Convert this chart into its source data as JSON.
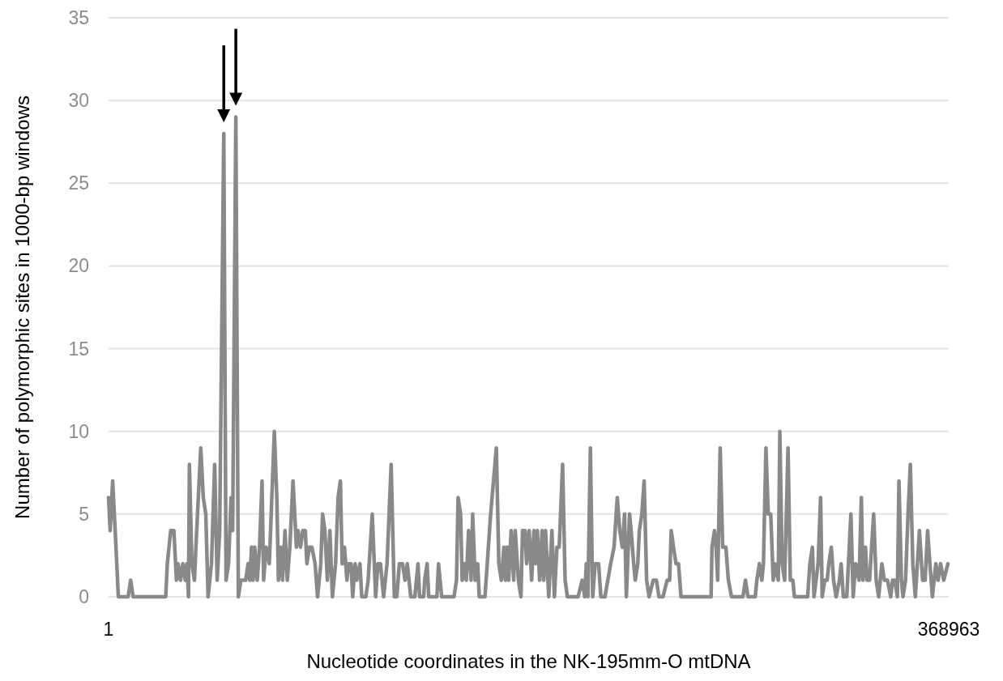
{
  "chart_data": {
    "type": "line",
    "xlabel": "Nucleotide coordinates in the NK-195mm-O mtDNA",
    "ylabel": "Number of polymorphic sites in 1000-bp windows",
    "xlim": [
      1,
      368963
    ],
    "xticks": [
      1,
      368963
    ],
    "ylim": [
      0,
      35
    ],
    "yticks": [
      0,
      5,
      10,
      15,
      20,
      25,
      30,
      35
    ],
    "grid": "y",
    "marker": "none",
    "line_style": "solid",
    "series": [
      {
        "color": "#898989",
        "x": [
          1,
          700,
          1800,
          2900,
          4300,
          8600,
          9700,
          10800,
          25100,
          25800,
          27300,
          28700,
          29800,
          30500,
          31600,
          32600,
          33700,
          34400,
          35100,
          35500,
          36600,
          37700,
          38700,
          40500,
          41600,
          42700,
          43700,
          45200,
          46600,
          47700,
          48800,
          50600,
          51600,
          52700,
          53800,
          54500,
          55900,
          57000,
          58100,
          60200,
          61300,
          62000,
          62800,
          63500,
          64200,
          65300,
          66300,
          67400,
          68100,
          69200,
          70600,
          72800,
          73900,
          74600,
          75700,
          76400,
          77500,
          78500,
          79600,
          81000,
          82500,
          83200,
          84300,
          85300,
          86400,
          87100,
          88200,
          89300,
          90700,
          91800,
          93200,
          94000,
          95000,
          96100,
          97200,
          98300,
          99700,
          100800,
          101800,
          102600,
          103600,
          104700,
          105400,
          106500,
          107200,
          108300,
          109000,
          110400,
          111200,
          113000,
          114000,
          115800,
          117300,
          118300,
          119400,
          120800,
          122300,
          124100,
          125500,
          126600,
          127700,
          129100,
          130200,
          131200,
          132700,
          134500,
          135900,
          136600,
          138400,
          138800,
          139900,
          140600,
          142000,
          144200,
          144900,
          146300,
          151700,
          152800,
          153500,
          154600,
          155300,
          156300,
          157100,
          158100,
          159200,
          159900,
          161000,
          162100,
          162800,
          165300,
          167800,
          170300,
          171400,
          172500,
          173600,
          174300,
          175000,
          175700,
          176800,
          177900,
          178600,
          180000,
          181100,
          181800,
          182900,
          183600,
          184700,
          185800,
          186800,
          187500,
          188300,
          189300,
          190400,
          191100,
          191900,
          193300,
          194700,
          195800,
          196900,
          197900,
          199400,
          200500,
          201500,
          203000,
          206200,
          208000,
          209100,
          209800,
          210500,
          211600,
          212600,
          213700,
          215200,
          216200,
          218000,
          220500,
          222000,
          223400,
          224500,
          225600,
          226600,
          227400,
          228800,
          229500,
          230600,
          231300,
          232400,
          233100,
          234200,
          235200,
          236300,
          237400,
          239200,
          240600,
          241700,
          243500,
          245300,
          246400,
          247100,
          248100,
          249200,
          250300,
          251400,
          264600,
          265000,
          266100,
          266800,
          267500,
          268600,
          269700,
          271100,
          272200,
          273600,
          278600,
          279700,
          280800,
          284000,
          284700,
          285800,
          286900,
          287600,
          288700,
          289700,
          290800,
          291900,
          292600,
          294100,
          294800,
          295800,
          296900,
          298400,
          299400,
          300500,
          301200,
          307000,
          308000,
          309100,
          309800,
          311600,
          312700,
          313400,
          314500,
          315600,
          316300,
          317400,
          318400,
          319500,
          321000,
          321700,
          322700,
          324200,
          326000,
          327000,
          328100,
          329600,
          330600,
          331300,
          332400,
          333100,
          334200,
          336000,
          337100,
          338200,
          339600,
          340700,
          342100,
          343500,
          344300,
          345300,
          346400,
          347100,
          348200,
          348900,
          350000,
          351100,
          352100,
          353200,
          354300,
          356100,
          357500,
          358600,
          359700,
          360700,
          361800,
          363300,
          364300,
          365400,
          366800,
          368600
        ],
        "values": [
          6,
          4,
          7,
          4,
          0,
          0,
          1,
          0,
          0,
          2,
          4,
          4,
          1,
          2,
          1,
          2,
          1,
          2,
          0,
          8,
          2,
          1,
          4,
          9,
          6,
          5,
          0,
          2,
          8,
          1,
          4,
          28,
          1,
          2,
          6,
          4,
          29,
          0,
          1,
          1,
          2,
          1,
          3,
          1,
          3,
          1,
          3,
          7,
          1,
          3,
          2,
          10,
          6,
          1,
          3,
          1,
          4,
          1,
          3,
          7,
          3,
          4,
          3,
          4,
          4,
          2,
          3,
          3,
          2,
          0,
          2,
          5,
          4,
          1,
          4,
          0,
          2,
          6,
          7,
          2,
          3,
          1,
          2,
          2,
          0,
          2,
          1,
          2,
          0,
          0,
          1,
          5,
          0,
          2,
          2,
          0,
          2,
          8,
          0,
          0,
          2,
          2,
          1,
          2,
          0,
          0,
          2,
          0,
          0,
          1,
          2,
          0,
          0,
          0,
          2,
          0,
          0,
          1,
          6,
          5,
          1,
          2,
          1,
          4,
          1,
          5,
          1,
          2,
          0,
          0,
          5,
          9,
          2,
          1,
          3,
          1,
          3,
          1,
          4,
          1,
          4,
          1,
          0,
          4,
          4,
          2,
          4,
          1,
          4,
          2,
          4,
          1,
          4,
          1,
          4,
          0,
          4,
          0,
          3,
          3,
          8,
          1,
          0,
          0,
          0,
          1,
          0,
          2,
          0,
          9,
          0,
          2,
          2,
          0,
          0,
          2,
          3,
          6,
          4,
          3,
          5,
          0,
          5,
          4,
          2,
          1,
          2,
          4,
          5,
          7,
          1,
          0,
          1,
          1,
          0,
          0,
          1,
          1,
          4,
          3,
          2,
          2,
          0,
          0,
          3,
          4,
          3,
          1,
          9,
          3,
          3,
          1,
          0,
          0,
          1,
          0,
          0,
          1,
          2,
          1,
          2,
          9,
          5,
          5,
          1,
          2,
          1,
          10,
          2,
          1,
          9,
          1,
          1,
          0,
          0,
          2,
          3,
          0,
          2,
          6,
          0,
          1,
          1,
          2,
          3,
          1,
          0,
          1,
          2,
          0,
          0,
          5,
          0,
          2,
          1,
          6,
          1,
          3,
          1,
          1,
          5,
          1,
          0,
          2,
          1,
          1,
          0,
          1,
          1,
          0,
          7,
          1,
          0,
          1,
          5,
          8,
          2,
          0,
          4,
          1,
          1,
          4,
          2,
          0,
          2,
          1,
          2,
          1,
          2
        ]
      }
    ]
  }
}
